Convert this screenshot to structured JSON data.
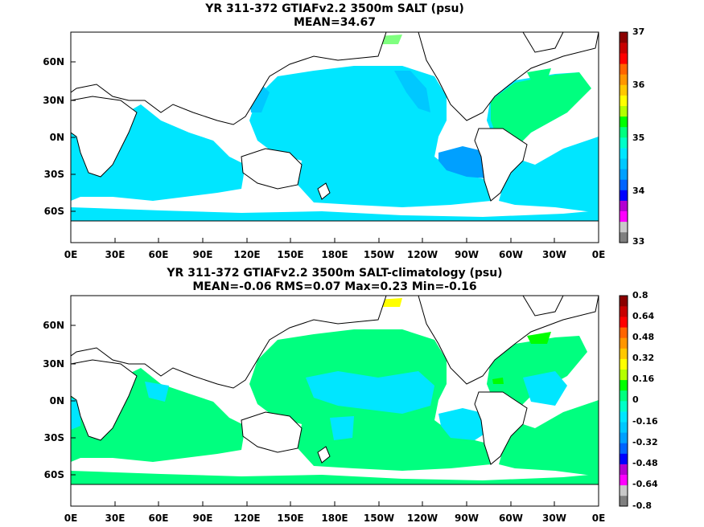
{
  "panels": [
    {
      "title_line1": "YR 311-372 GTIAFv2.2 3500m SALT (psu)",
      "title_line2": "MEAN=34.67",
      "ylabels": [
        "60N",
        "30N",
        "0N",
        "30S",
        "60S"
      ],
      "xlabels": [
        "0E",
        "30E",
        "60E",
        "90E",
        "120E",
        "150E",
        "180E",
        "150W",
        "120W",
        "90W",
        "60W",
        "30W",
        "0E"
      ],
      "colorbar": {
        "labels": [
          "37",
          "36",
          "35",
          "34",
          "33"
        ],
        "colors": [
          "#7f7f7f",
          "#c8c8c8",
          "#ff00ff",
          "#b400d2",
          "#0000ff",
          "#0064ff",
          "#00a0ff",
          "#00c8ff",
          "#00e6ff",
          "#00ffc8",
          "#00ff7f",
          "#00ff00",
          "#b4ff00",
          "#ffff00",
          "#ffc800",
          "#ff9600",
          "#ff6400",
          "#ff0000",
          "#c80000",
          "#8b0000"
        ]
      },
      "dominant_color": "#00e6ff"
    },
    {
      "title_line1": "YR 311-372 GTIAFv2.2 3500m SALT-climatology (psu)",
      "title_line2": "MEAN=-0.06   RMS=0.07   Max=0.23   Min=-0.16",
      "ylabels": [
        "60N",
        "30N",
        "0N",
        "30S",
        "60S"
      ],
      "xlabels": [
        "0E",
        "30E",
        "60E",
        "90E",
        "120E",
        "150E",
        "180E",
        "150W",
        "120W",
        "90W",
        "60W",
        "30W",
        "0E"
      ],
      "colorbar": {
        "labels": [
          "0.8",
          "0.64",
          "0.48",
          "0.32",
          "0.16",
          "0",
          "-0.16",
          "-0.32",
          "-0.48",
          "-0.64",
          "-0.8"
        ],
        "colors": [
          "#7f7f7f",
          "#c8c8c8",
          "#ff00ff",
          "#b400d2",
          "#0000ff",
          "#0064ff",
          "#00a0ff",
          "#00c8ff",
          "#00e6ff",
          "#00ffc8",
          "#00ff7f",
          "#00ff00",
          "#b4ff00",
          "#ffff00",
          "#ffc800",
          "#ff9600",
          "#ff6400",
          "#ff0000",
          "#c80000",
          "#8b0000"
        ]
      },
      "dominant_color": "#00ff7f"
    }
  ]
}
